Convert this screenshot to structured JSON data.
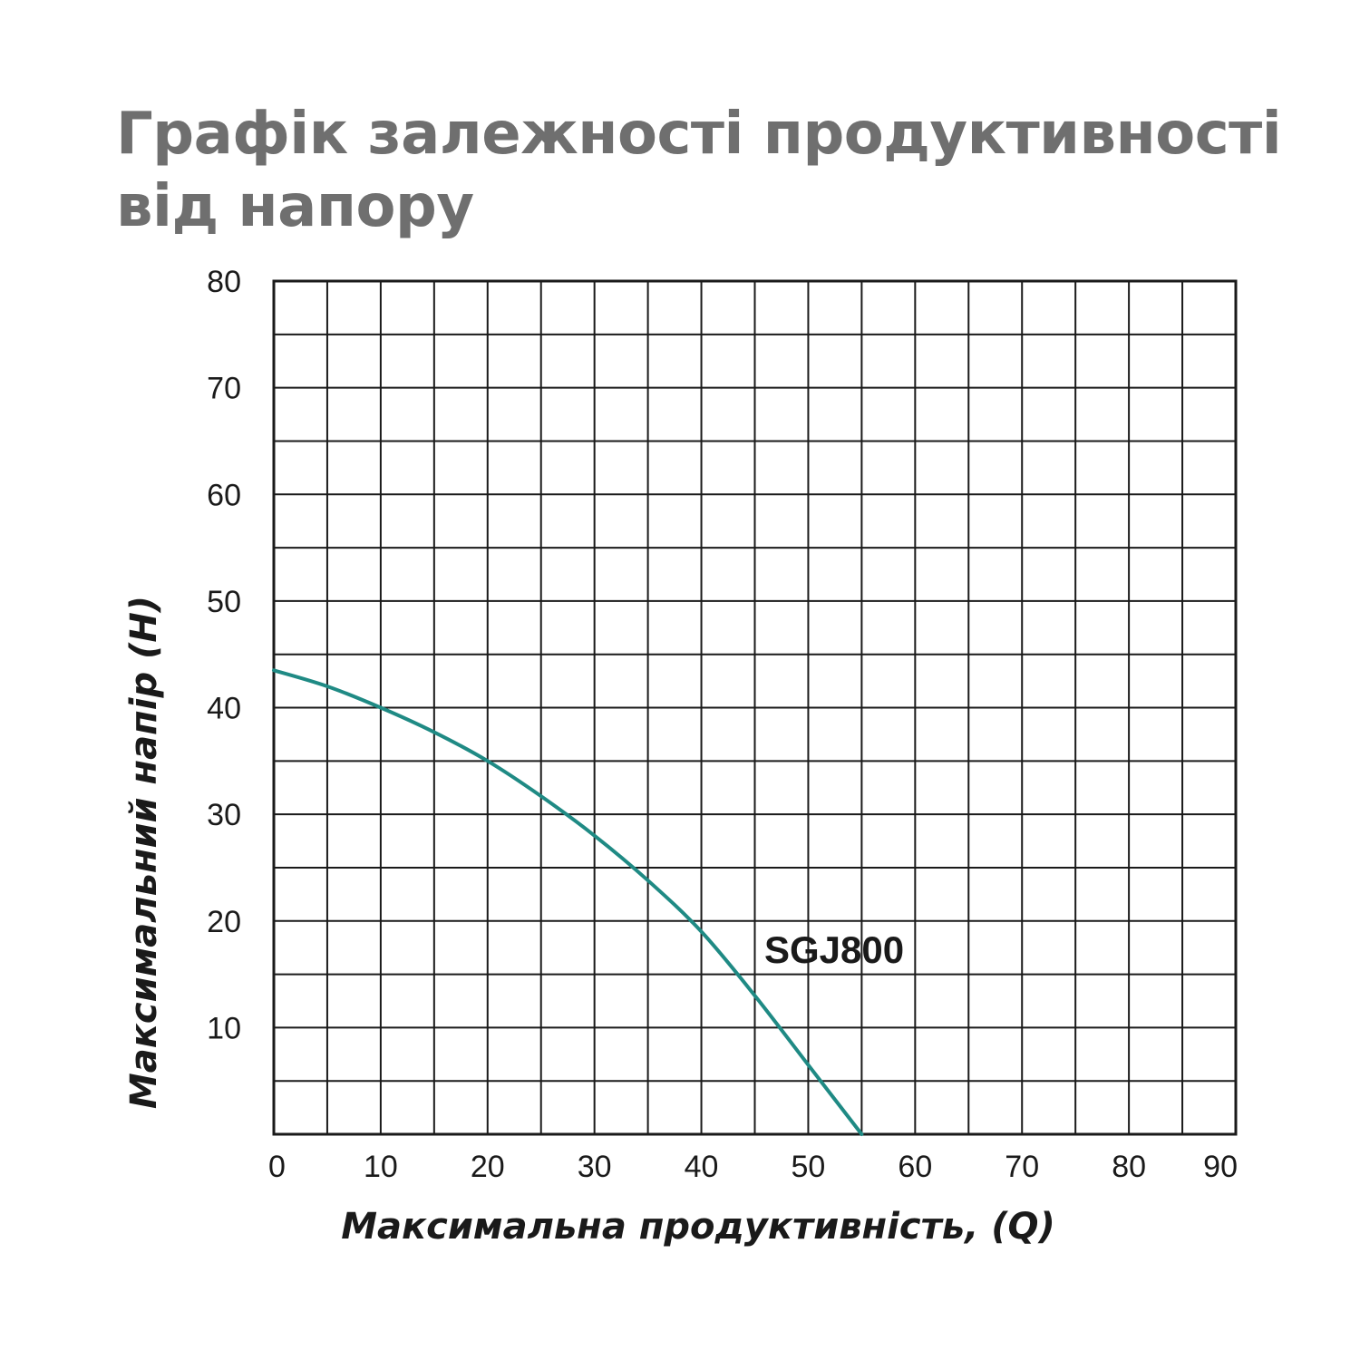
{
  "chart_data": {
    "type": "line",
    "title": "Графік залежності продуктивності від напору",
    "xlabel": "Максимальна продуктивність, (Q)",
    "ylabel": "Максимальний напір (H)",
    "xlim": [
      0,
      90
    ],
    "ylim": [
      0,
      80
    ],
    "x_ticks": [
      "0",
      "10",
      "20",
      "30",
      "40",
      "50",
      "60",
      "70",
      "80",
      "90"
    ],
    "y_ticks": [
      "10",
      "20",
      "30",
      "40",
      "50",
      "60",
      "70",
      "80"
    ],
    "grid": true,
    "series": [
      {
        "name": "SGJ800",
        "color": "#1f8a84",
        "x": [
          0,
          5,
          10,
          15,
          20,
          25,
          30,
          35,
          40,
          45,
          50,
          55
        ],
        "y": [
          43.5,
          42,
          40,
          37.7,
          35,
          31.7,
          28,
          23.8,
          19,
          13,
          6.5,
          0
        ]
      }
    ]
  }
}
